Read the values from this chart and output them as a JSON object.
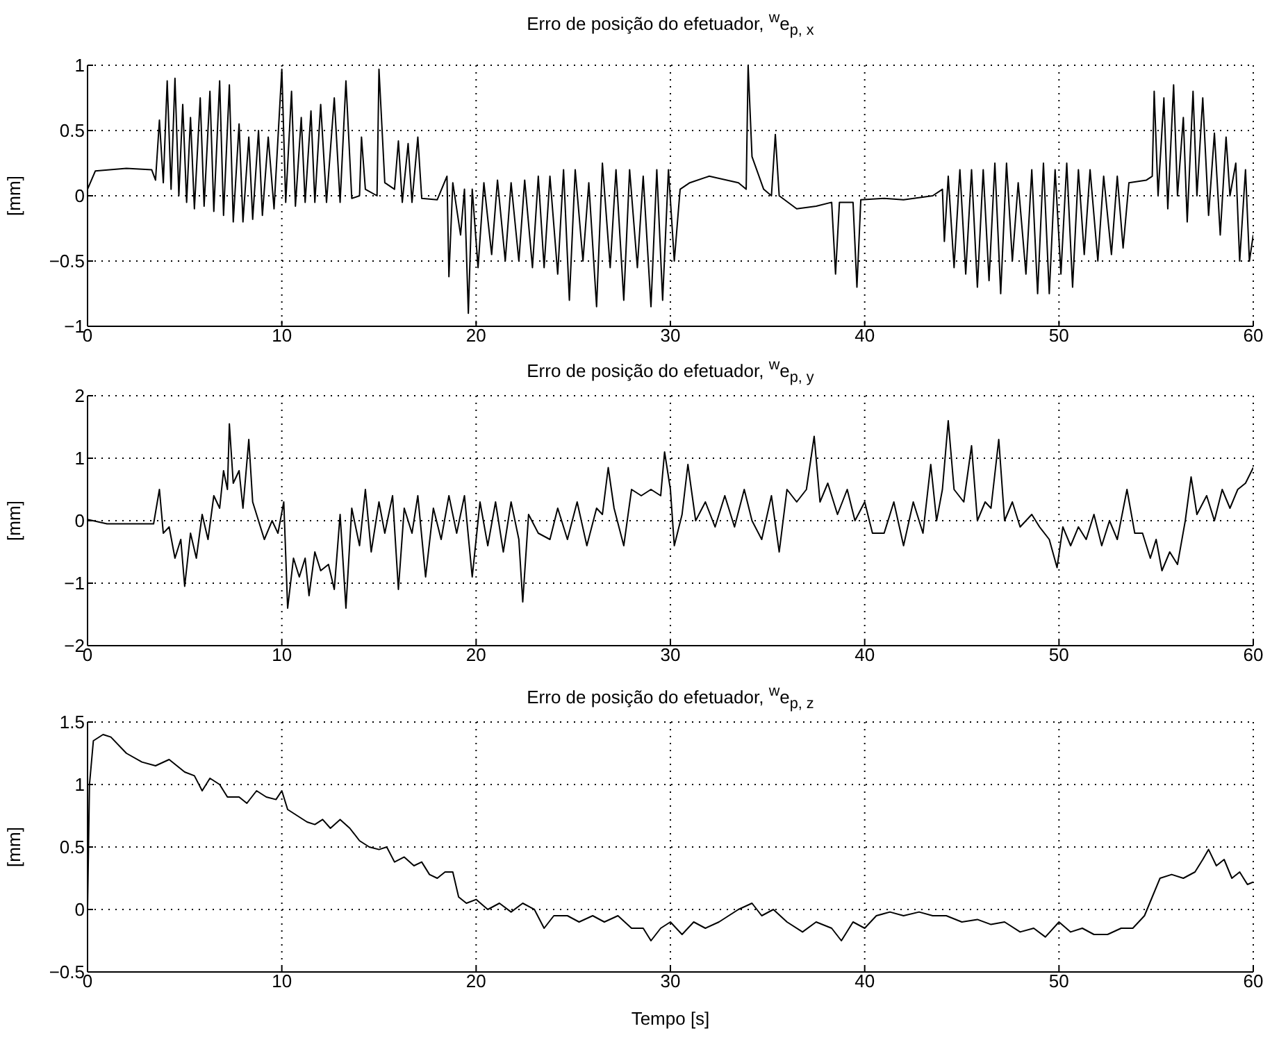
{
  "chart_data": [
    {
      "type": "line",
      "title": "Erro de posição do efetuador, $^{w}$e$_{p, x}$",
      "ylabel": "[mm]",
      "color": "#000000",
      "grid": true,
      "xlim": [
        0,
        60
      ],
      "xticks": [
        0,
        10,
        20,
        30,
        40,
        50,
        60
      ],
      "ylim": [
        -1,
        1
      ],
      "yticks": [
        {
          "value": -1,
          "label": "−1"
        },
        {
          "value": -0.5,
          "label": "−0.5"
        },
        0,
        0.5,
        1
      ],
      "x": [
        0,
        0.4,
        2,
        3.3,
        3.5,
        3.7,
        3.9,
        4.1,
        4.3,
        4.5,
        4.7,
        4.9,
        5.1,
        5.3,
        5.5,
        5.8,
        6.0,
        6.3,
        6.5,
        6.8,
        7.0,
        7.3,
        7.5,
        7.8,
        8.0,
        8.3,
        8.5,
        8.8,
        9.0,
        9.3,
        9.6,
        10.0,
        10.2,
        10.5,
        10.7,
        11.0,
        11.2,
        11.5,
        11.7,
        12.0,
        12.3,
        12.7,
        13.0,
        13.3,
        13.6,
        14.0,
        14.1,
        14.3,
        14.9,
        15.0,
        15.3,
        15.8,
        16.0,
        16.2,
        16.5,
        16.7,
        17.0,
        17.2,
        18.0,
        18.5,
        18.6,
        18.8,
        19.2,
        19.4,
        19.6,
        19.8,
        20.1,
        20.4,
        20.8,
        21.1,
        21.5,
        21.8,
        22.2,
        22.5,
        22.9,
        23.2,
        23.5,
        23.8,
        24.2,
        24.5,
        24.8,
        25.1,
        25.5,
        25.8,
        26.2,
        26.5,
        26.9,
        27.2,
        27.6,
        27.9,
        28.3,
        28.6,
        29.0,
        29.3,
        29.6,
        29.9,
        30.2,
        30.5,
        31,
        32,
        33.5,
        33.9,
        34.0,
        34.2,
        34.8,
        35.2,
        35.4,
        35.6,
        36.5,
        37.5,
        38.3,
        38.5,
        38.7,
        39.4,
        39.6,
        39.8,
        41,
        42,
        43.5,
        44.0,
        44.1,
        44.3,
        44.6,
        44.9,
        45.2,
        45.5,
        45.8,
        46.1,
        46.4,
        46.7,
        47.0,
        47.3,
        47.6,
        47.9,
        48.3,
        48.6,
        48.9,
        49.2,
        49.5,
        49.8,
        50.1,
        50.4,
        50.7,
        51.0,
        51.3,
        51.6,
        52.0,
        52.3,
        52.7,
        53.0,
        53.3,
        53.6,
        54.5,
        54.8,
        54.9,
        55.1,
        55.4,
        55.6,
        55.9,
        56.1,
        56.4,
        56.6,
        56.9,
        57.1,
        57.4,
        57.7,
        58.0,
        58.3,
        58.6,
        58.8,
        59.1,
        59.3,
        59.6,
        59.8,
        60
      ],
      "values": [
        0.05,
        0.19,
        0.21,
        0.2,
        0.12,
        0.58,
        0.1,
        0.88,
        0.05,
        0.9,
        0.0,
        0.7,
        -0.05,
        0.6,
        -0.1,
        0.75,
        -0.08,
        0.8,
        -0.12,
        0.88,
        -0.15,
        0.85,
        -0.2,
        0.55,
        -0.2,
        0.45,
        -0.18,
        0.5,
        -0.15,
        0.45,
        -0.1,
        0.97,
        -0.05,
        0.8,
        -0.08,
        0.6,
        -0.05,
        0.65,
        -0.05,
        0.7,
        -0.05,
        0.75,
        -0.05,
        0.88,
        -0.02,
        0.0,
        0.45,
        0.05,
        0.0,
        0.97,
        0.1,
        0.05,
        0.42,
        -0.05,
        0.4,
        -0.05,
        0.45,
        -0.02,
        -0.03,
        0.15,
        -0.62,
        0.1,
        -0.3,
        0.05,
        -0.9,
        0.05,
        -0.55,
        0.1,
        -0.45,
        0.12,
        -0.5,
        0.1,
        -0.5,
        0.12,
        -0.55,
        0.15,
        -0.55,
        0.15,
        -0.6,
        0.2,
        -0.8,
        0.2,
        -0.5,
        0.1,
        -0.85,
        0.25,
        -0.55,
        0.2,
        -0.8,
        0.2,
        -0.55,
        0.15,
        -0.85,
        0.2,
        -0.8,
        0.2,
        -0.5,
        0.05,
        0.1,
        0.15,
        0.1,
        0.05,
        1.0,
        0.3,
        0.05,
        0.0,
        0.47,
        0.0,
        -0.1,
        -0.08,
        -0.05,
        -0.6,
        -0.05,
        -0.05,
        -0.7,
        -0.03,
        -0.02,
        -0.03,
        0.0,
        0.05,
        -0.35,
        0.15,
        -0.55,
        0.2,
        -0.6,
        0.2,
        -0.7,
        0.2,
        -0.65,
        0.25,
        -0.75,
        0.25,
        -0.5,
        0.1,
        -0.6,
        0.2,
        -0.75,
        0.25,
        -0.75,
        0.2,
        -0.6,
        0.25,
        -0.7,
        0.2,
        -0.45,
        0.2,
        -0.5,
        0.15,
        -0.45,
        0.15,
        -0.4,
        0.1,
        0.12,
        0.15,
        0.8,
        0.0,
        0.75,
        -0.1,
        0.85,
        0.0,
        0.6,
        -0.2,
        0.8,
        0.0,
        0.75,
        -0.15,
        0.48,
        -0.3,
        0.45,
        0.0,
        0.25,
        -0.5,
        0.2,
        -0.5,
        -0.3
      ]
    },
    {
      "type": "line",
      "title": "Erro de posição do efetuador, $^{w}$e$_{p, y}$",
      "ylabel": "[mm]",
      "color": "#000000",
      "grid": true,
      "xlim": [
        0,
        60
      ],
      "xticks": [
        0,
        10,
        20,
        30,
        40,
        50,
        60
      ],
      "ylim": [
        -2,
        2
      ],
      "yticks": [
        {
          "value": -2,
          "label": "−2"
        },
        {
          "value": -1,
          "label": "−1"
        },
        0,
        1,
        2
      ],
      "x": [
        0,
        1,
        3.4,
        3.7,
        3.9,
        4.2,
        4.5,
        4.8,
        5.0,
        5.3,
        5.6,
        5.9,
        6.2,
        6.5,
        6.8,
        7.0,
        7.2,
        7.3,
        7.5,
        7.8,
        8.0,
        8.3,
        8.5,
        8.8,
        9.1,
        9.5,
        9.8,
        10.1,
        10.3,
        10.6,
        10.9,
        11.2,
        11.4,
        11.7,
        12.0,
        12.4,
        12.7,
        13.0,
        13.3,
        13.6,
        14.0,
        14.3,
        14.6,
        15.0,
        15.3,
        15.7,
        16.0,
        16.3,
        16.7,
        17.0,
        17.4,
        17.8,
        18.2,
        18.6,
        19.0,
        19.4,
        19.8,
        20.2,
        20.6,
        21.0,
        21.4,
        21.8,
        22.2,
        22.4,
        22.7,
        23.2,
        23.8,
        24.2,
        24.7,
        25.2,
        25.7,
        26.2,
        26.5,
        26.8,
        27.1,
        27.6,
        28.0,
        28.5,
        29.0,
        29.5,
        29.7,
        30.0,
        30.2,
        30.6,
        30.9,
        31.3,
        31.8,
        32.3,
        32.8,
        33.3,
        33.8,
        34.2,
        34.7,
        35.2,
        35.6,
        36.0,
        36.5,
        37.0,
        37.4,
        37.7,
        38.1,
        38.6,
        39.1,
        39.5,
        40.0,
        40.4,
        41.0,
        41.5,
        42.0,
        42.5,
        43.0,
        43.4,
        43.7,
        44.0,
        44.3,
        44.6,
        45.1,
        45.5,
        45.8,
        46.2,
        46.5,
        46.9,
        47.2,
        47.6,
        48.0,
        48.6,
        49.0,
        49.5,
        49.9,
        50.2,
        50.6,
        51.0,
        51.4,
        51.8,
        52.2,
        52.6,
        53.0,
        53.5,
        53.9,
        54.3,
        54.7,
        55.0,
        55.3,
        55.7,
        56.1,
        56.5,
        56.8,
        57.1,
        57.6,
        58.0,
        58.4,
        58.8,
        59.2,
        59.6,
        60
      ],
      "values": [
        0.02,
        -0.05,
        -0.05,
        0.5,
        -0.2,
        -0.1,
        -0.6,
        -0.3,
        -1.05,
        -0.2,
        -0.6,
        0.1,
        -0.3,
        0.4,
        0.2,
        0.8,
        0.5,
        1.55,
        0.6,
        0.8,
        0.2,
        1.3,
        0.3,
        0.0,
        -0.3,
        0.0,
        -0.2,
        0.3,
        -1.4,
        -0.6,
        -0.9,
        -0.6,
        -1.2,
        -0.5,
        -0.8,
        -0.7,
        -1.1,
        0.1,
        -1.4,
        0.2,
        -0.4,
        0.5,
        -0.5,
        0.3,
        -0.2,
        0.4,
        -1.1,
        0.2,
        -0.2,
        0.4,
        -0.9,
        0.2,
        -0.3,
        0.4,
        -0.2,
        0.4,
        -0.9,
        0.3,
        -0.4,
        0.3,
        -0.5,
        0.3,
        -0.3,
        -1.3,
        0.1,
        -0.2,
        -0.3,
        0.2,
        -0.3,
        0.3,
        -0.4,
        0.2,
        0.1,
        0.85,
        0.2,
        -0.4,
        0.5,
        0.4,
        0.5,
        0.4,
        1.1,
        0.5,
        -0.4,
        0.1,
        0.9,
        0.0,
        0.3,
        -0.1,
        0.4,
        -0.1,
        0.5,
        0.0,
        -0.3,
        0.4,
        -0.5,
        0.5,
        0.3,
        0.5,
        1.35,
        0.3,
        0.6,
        0.1,
        0.5,
        0.0,
        0.3,
        -0.2,
        -0.2,
        0.3,
        -0.4,
        0.3,
        -0.2,
        0.9,
        0.0,
        0.5,
        1.6,
        0.5,
        0.3,
        1.2,
        0.0,
        0.3,
        0.2,
        1.3,
        0.0,
        0.3,
        -0.1,
        0.1,
        -0.1,
        -0.3,
        -0.75,
        -0.1,
        -0.4,
        -0.1,
        -0.3,
        0.1,
        -0.4,
        0.0,
        -0.3,
        0.5,
        -0.2,
        -0.2,
        -0.6,
        -0.3,
        -0.8,
        -0.5,
        -0.7,
        0.0,
        0.7,
        0.1,
        0.4,
        0.0,
        0.5,
        0.2,
        0.5,
        0.6,
        0.85
      ]
    },
    {
      "type": "line",
      "title": "Erro de posição do efetuador, $^{w}$e$_{p, z}$",
      "ylabel": "[mm]",
      "xlabel": "Tempo [s]",
      "color": "#000000",
      "grid": true,
      "xlim": [
        0,
        60
      ],
      "xticks": [
        0,
        10,
        20,
        30,
        40,
        50,
        60
      ],
      "ylim": [
        -0.5,
        1.5
      ],
      "yticks": [
        {
          "value": -0.5,
          "label": "−0.5"
        },
        0,
        0.5,
        1,
        1.5
      ],
      "x": [
        0,
        0.1,
        0.3,
        0.8,
        1.2,
        2,
        2.8,
        3.5,
        4.2,
        4.6,
        5.0,
        5.5,
        5.9,
        6.3,
        6.8,
        7.2,
        7.8,
        8.2,
        8.7,
        9.2,
        9.7,
        10.0,
        10.3,
        10.8,
        11.3,
        11.7,
        12.1,
        12.5,
        13.0,
        13.5,
        14.0,
        14.5,
        15.0,
        15.4,
        15.8,
        16.3,
        16.8,
        17.2,
        17.6,
        18.0,
        18.4,
        18.8,
        19.1,
        19.5,
        20.0,
        20.6,
        21.2,
        21.8,
        22.4,
        23.0,
        23.5,
        24.0,
        24.7,
        25.3,
        26.0,
        26.6,
        27.3,
        28.0,
        28.6,
        29.0,
        29.5,
        30.0,
        30.6,
        31.2,
        31.8,
        32.5,
        33.0,
        33.5,
        34.2,
        34.7,
        35.3,
        36.0,
        36.8,
        37.5,
        38.3,
        38.8,
        39.4,
        40.0,
        40.6,
        41.3,
        42.0,
        42.8,
        43.5,
        44.2,
        45.0,
        45.8,
        46.5,
        47.2,
        48.0,
        48.7,
        49.3,
        50.0,
        50.6,
        51.2,
        51.8,
        52.5,
        53.2,
        53.8,
        54.4,
        54.8,
        55.2,
        55.8,
        56.4,
        57.0,
        57.4,
        57.7,
        58.1,
        58.5,
        58.9,
        59.3,
        59.7,
        60
      ],
      "values": [
        0.0,
        1.0,
        1.35,
        1.4,
        1.38,
        1.25,
        1.18,
        1.15,
        1.2,
        1.15,
        1.1,
        1.07,
        0.95,
        1.05,
        1.0,
        0.9,
        0.9,
        0.85,
        0.95,
        0.9,
        0.88,
        0.95,
        0.8,
        0.75,
        0.7,
        0.68,
        0.72,
        0.65,
        0.72,
        0.65,
        0.55,
        0.5,
        0.48,
        0.5,
        0.38,
        0.42,
        0.35,
        0.38,
        0.28,
        0.25,
        0.3,
        0.3,
        0.1,
        0.05,
        0.08,
        0.0,
        0.05,
        -0.02,
        0.05,
        0.0,
        -0.15,
        -0.05,
        -0.05,
        -0.1,
        -0.05,
        -0.1,
        -0.05,
        -0.15,
        -0.15,
        -0.25,
        -0.15,
        -0.1,
        -0.2,
        -0.1,
        -0.15,
        -0.1,
        -0.05,
        0.0,
        0.05,
        -0.05,
        0.0,
        -0.1,
        -0.18,
        -0.1,
        -0.15,
        -0.25,
        -0.1,
        -0.15,
        -0.05,
        -0.02,
        -0.05,
        -0.02,
        -0.05,
        -0.05,
        -0.1,
        -0.08,
        -0.12,
        -0.1,
        -0.18,
        -0.15,
        -0.22,
        -0.1,
        -0.18,
        -0.15,
        -0.2,
        -0.2,
        -0.15,
        -0.15,
        -0.05,
        0.1,
        0.25,
        0.28,
        0.25,
        0.3,
        0.4,
        0.48,
        0.35,
        0.4,
        0.25,
        0.3,
        0.2,
        0.22
      ]
    }
  ]
}
